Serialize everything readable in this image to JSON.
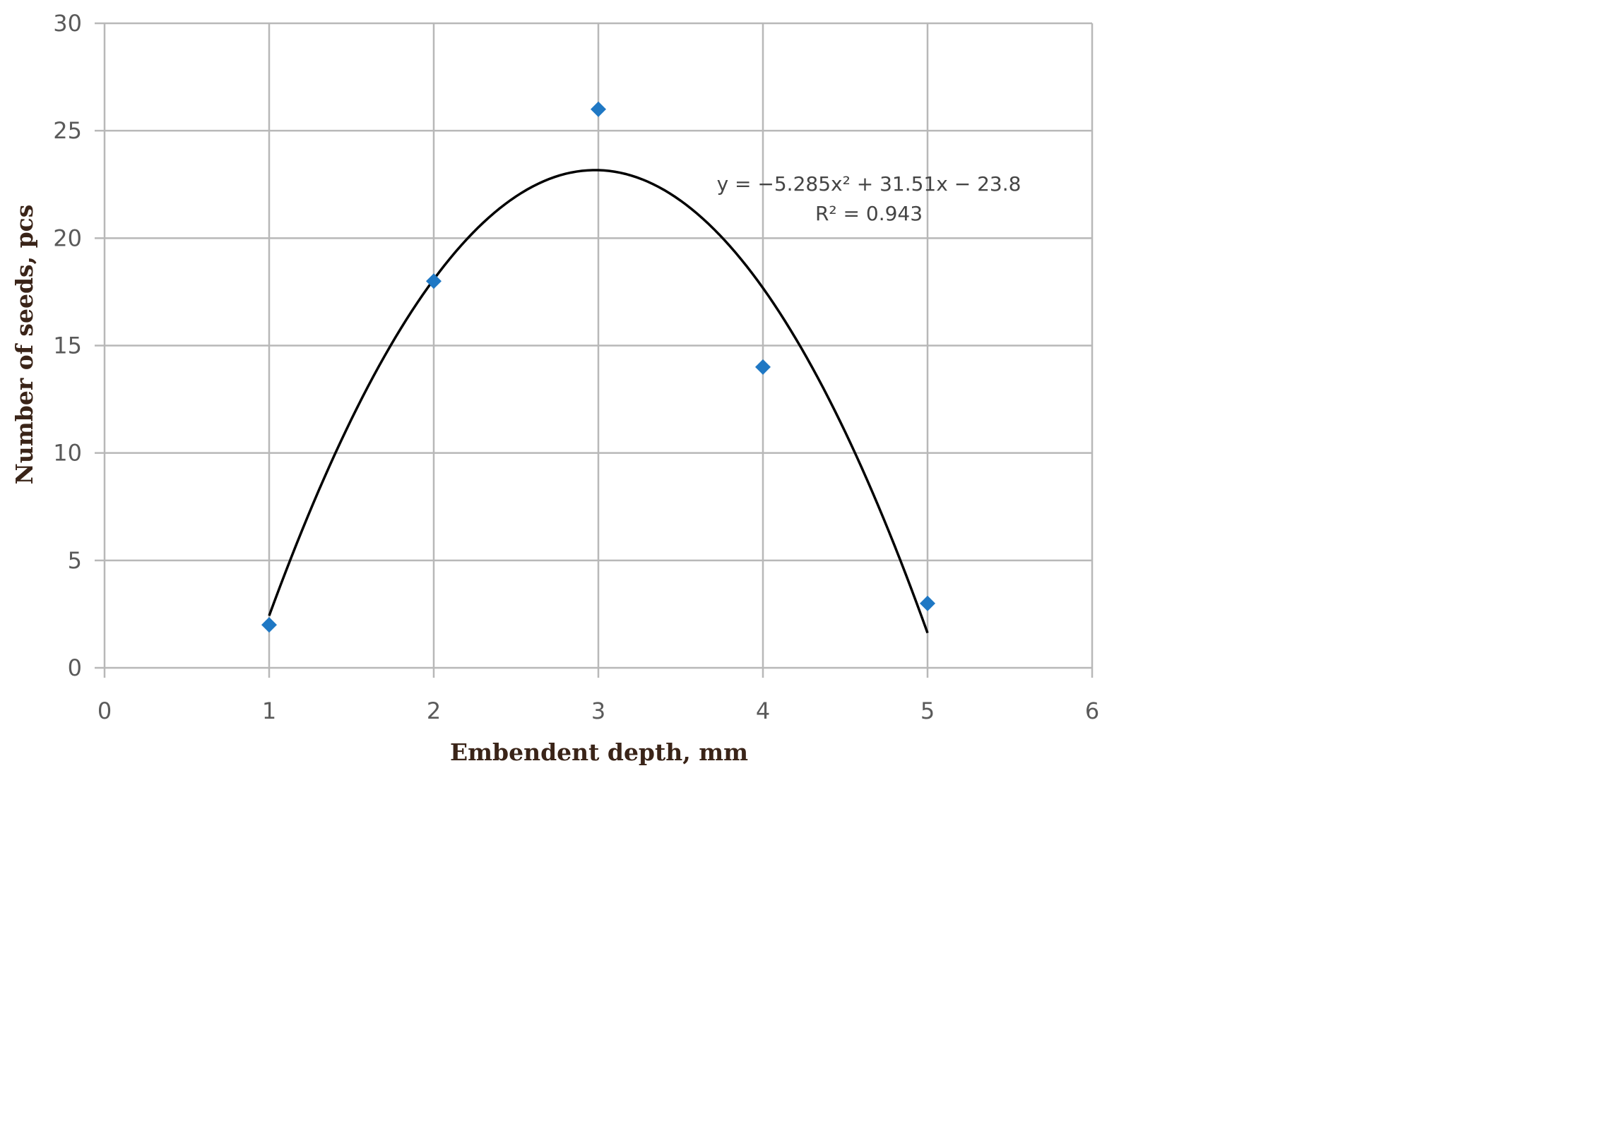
{
  "chart_data": {
    "type": "scatter",
    "title": "",
    "xlabel": "Embendent depth, mm",
    "ylabel": "Number of seeds, pcs",
    "xlim": [
      0,
      6
    ],
    "ylim": [
      0,
      30
    ],
    "x_ticks": [
      "0",
      "1",
      "2",
      "3",
      "4",
      "5",
      "6"
    ],
    "y_ticks": [
      "0",
      "5",
      "10",
      "15",
      "20",
      "25",
      "30"
    ],
    "grid": true,
    "legend": "none",
    "series": [
      {
        "marker": "diamond",
        "color": "#1f78c4",
        "x": [
          1,
          2,
          3,
          4,
          5
        ],
        "y": [
          2,
          18,
          26,
          14,
          3
        ]
      }
    ],
    "trendline": {
      "type": "polynomial",
      "order": 2,
      "coefficients": [
        -5.285,
        31.51,
        -23.8
      ],
      "x_range": [
        1,
        5
      ],
      "color": "#000000",
      "equation_label": "y = −5.285x² + 31.51x − 23.8",
      "r2_label": "R² = 0.943"
    }
  }
}
